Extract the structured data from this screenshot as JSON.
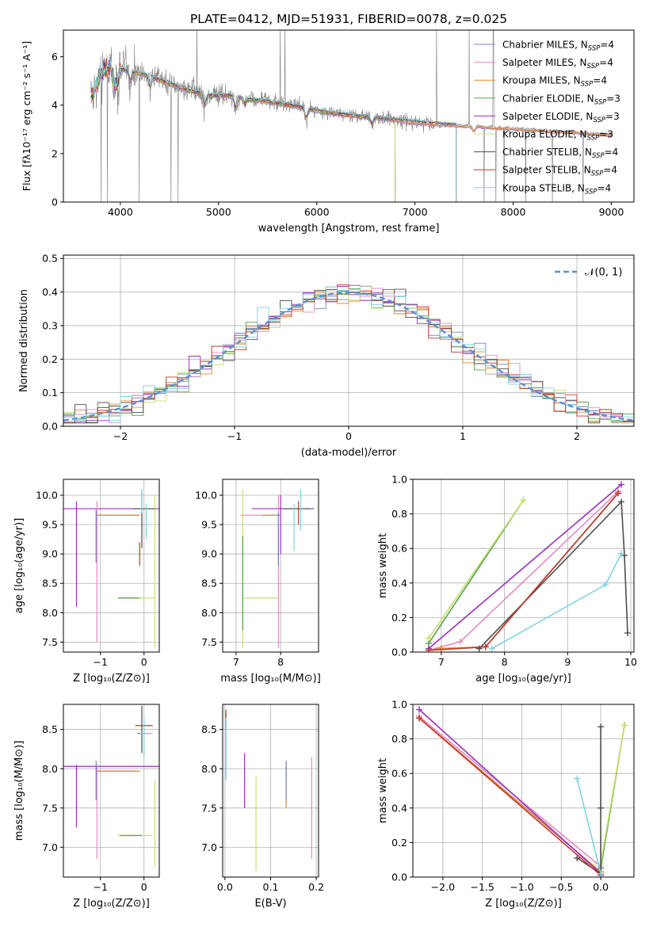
{
  "figure": {
    "title": "PLATE=0412, MJD=51931, FIBERID=0078, z=0.025"
  },
  "series_colors": {
    "Chabrier MILES": "#6f82c4",
    "Salpeter MILES": "#e58ac6",
    "Kroupa MILES": "#e08a2c",
    "Chabrier ELODIE": "#56a24d",
    "Salpeter ELODIE": "#9b2fbf",
    "Kroupa ELODIE": "#c8e070",
    "Chabrier STELIB": "#4d4d4d",
    "Salpeter STELIB": "#c0392b",
    "Kroupa STELIB": "#7fd3e3",
    "data": "#808080",
    "gaussian": "#5b8fd6"
  },
  "chart_data": [
    {
      "id": "spectrum",
      "type": "line",
      "xlabel": "wavelength [Angstrom, rest frame]",
      "ylabel": "Flux [fλ10⁻¹⁷ erg cm⁻² s⁻¹ A⁻¹]",
      "xlim": [
        3420,
        9230
      ],
      "ylim": [
        0,
        7.1
      ],
      "xticks": [
        4000,
        5000,
        6000,
        7000,
        8000,
        9000
      ],
      "yticks": [
        0,
        2,
        4,
        6
      ],
      "legend_position": "upper right",
      "legend": [
        {
          "label": "Chabrier MILES, N",
          "sub": "SSP",
          "tail": "=4"
        },
        {
          "label": "Salpeter MILES, N",
          "sub": "SSP",
          "tail": "=4"
        },
        {
          "label": "Kroupa MILES, N",
          "sub": "SSP",
          "tail": "=4"
        },
        {
          "label": "Chabrier ELODIE, N",
          "sub": "SSP",
          "tail": "=3"
        },
        {
          "label": "Salpeter ELODIE, N",
          "sub": "SSP",
          "tail": "=3"
        },
        {
          "label": "Kroupa ELODIE, N",
          "sub": "SSP",
          "tail": "=3"
        },
        {
          "label": "Chabrier STELIB, N",
          "sub": "SSP",
          "tail": "=4"
        },
        {
          "label": "Salpeter STELIB, N",
          "sub": "SSP",
          "tail": "=4"
        },
        {
          "label": "Kroupa STELIB, N",
          "sub": "SSP",
          "tail": "=4"
        }
      ],
      "model_envelope": [
        [
          3720,
          4.5
        ],
        [
          3800,
          5.3
        ],
        [
          3900,
          5.6
        ],
        [
          4000,
          5.5
        ],
        [
          4100,
          5.4
        ],
        [
          4300,
          5.2
        ],
        [
          4500,
          4.9
        ],
        [
          4700,
          4.6
        ],
        [
          4900,
          4.4
        ],
        [
          5100,
          4.4
        ],
        [
          5300,
          4.25
        ],
        [
          5500,
          4.15
        ],
        [
          5800,
          3.95
        ],
        [
          6100,
          3.7
        ],
        [
          6400,
          3.55
        ],
        [
          6700,
          3.45
        ],
        [
          7000,
          3.3
        ],
        [
          7300,
          3.2
        ],
        [
          7600,
          3.15
        ],
        [
          8000,
          3.05
        ],
        [
          8400,
          2.95
        ],
        [
          8800,
          2.85
        ],
        [
          9000,
          2.8
        ]
      ]
    },
    {
      "id": "residuals",
      "type": "line",
      "xlabel": "(data-model)/error",
      "ylabel": "Normed distribution",
      "xlim": [
        -2.5,
        2.5
      ],
      "ylim": [
        0,
        0.51
      ],
      "xticks": [
        -2,
        -1,
        0,
        1,
        2
      ],
      "yticks": [
        0.0,
        0.1,
        0.2,
        0.3,
        0.4,
        0.5
      ],
      "legend_position": "upper right",
      "gaussian_label": "𝒩(0, 1)"
    },
    {
      "id": "age-vs-Z",
      "type": "scatter",
      "xlabel": "Z [log₁₀(Z/Z⊙)]",
      "ylabel": "age  [log₁₀(age/yr)]",
      "xlim": [
        -1.85,
        0.35
      ],
      "ylim": [
        7.33,
        10.27
      ],
      "xticks": [
        -1,
        0
      ],
      "yticks": [
        7.5,
        8.0,
        8.5,
        9.0,
        9.5,
        10.0
      ]
    },
    {
      "id": "age-vs-mass",
      "type": "scatter",
      "xlabel": "mass [log₁₀(M/M⊙)]",
      "ylabel": "",
      "xlim": [
        6.7,
        8.85
      ],
      "ylim": [
        7.33,
        10.27
      ],
      "xticks": [
        7,
        8
      ],
      "yticks": [
        7.5,
        8.0,
        8.5,
        9.0,
        9.5,
        10.0
      ]
    },
    {
      "id": "massweight-vs-age",
      "type": "line",
      "xlabel": "age  [log₁₀(age/yr)]",
      "ylabel": "mass weight",
      "xlim": [
        6.55,
        10.05
      ],
      "ylim": [
        0,
        1.0
      ],
      "xticks": [
        7,
        8,
        9,
        10
      ],
      "yticks": [
        0.0,
        0.2,
        0.4,
        0.6,
        0.8,
        1.0
      ],
      "series": [
        {
          "name": "Chabrier MILES",
          "x": [
            6.8,
            7.0,
            7.7,
            9.8
          ],
          "y": [
            0.01,
            0.02,
            0.03,
            0.92
          ]
        },
        {
          "name": "Salpeter MILES",
          "x": [
            6.8,
            7.3,
            9.8
          ],
          "y": [
            0.01,
            0.06,
            0.93
          ]
        },
        {
          "name": "Kroupa MILES",
          "x": [
            6.8,
            7.0,
            7.7,
            9.8
          ],
          "y": [
            0.01,
            0.02,
            0.03,
            0.92
          ]
        },
        {
          "name": "Chabrier ELODIE",
          "x": [
            6.8,
            8.3
          ],
          "y": [
            0.05,
            0.88
          ]
        },
        {
          "name": "Salpeter ELODIE",
          "x": [
            6.8,
            9.85
          ],
          "y": [
            0.02,
            0.97
          ]
        },
        {
          "name": "Kroupa ELODIE",
          "x": [
            6.8,
            8.3
          ],
          "y": [
            0.08,
            0.88
          ]
        },
        {
          "name": "Chabrier STELIB",
          "x": [
            7.6,
            9.85,
            9.9,
            9.95
          ],
          "y": [
            0.02,
            0.87,
            0.56,
            0.11
          ]
        },
        {
          "name": "Salpeter STELIB",
          "x": [
            6.8,
            7.7,
            9.8
          ],
          "y": [
            0.01,
            0.03,
            0.92
          ]
        },
        {
          "name": "Kroupa STELIB",
          "x": [
            7.8,
            9.6,
            9.85
          ],
          "y": [
            0.02,
            0.39,
            0.57
          ]
        }
      ]
    },
    {
      "id": "mass-vs-Z",
      "type": "scatter",
      "xlabel": "Z [log₁₀(Z/Z⊙)]",
      "ylabel": "mass [log₁₀(M/M⊙)]",
      "xlim": [
        -1.85,
        0.35
      ],
      "ylim": [
        6.62,
        8.82
      ],
      "xticks": [
        -1,
        0
      ],
      "yticks": [
        7.0,
        7.5,
        8.0,
        8.5
      ]
    },
    {
      "id": "mass-vs-EBV",
      "type": "scatter",
      "xlabel": "E(B-V)",
      "ylabel": "",
      "xlim": [
        -0.005,
        0.205
      ],
      "ylim": [
        6.62,
        8.82
      ],
      "xticks": [
        0.0,
        0.1,
        0.2
      ],
      "yticks": [
        7.0,
        7.5,
        8.0,
        8.5
      ]
    },
    {
      "id": "massweight-vs-Z",
      "type": "line",
      "xlabel": "Z [log₁₀(Z/Z⊙)]",
      "ylabel": "mass weight",
      "xlim": [
        -2.38,
        0.42
      ],
      "ylim": [
        0,
        1.0
      ],
      "xticks": [
        -2.0,
        -1.5,
        -1.0,
        -0.5,
        0.0
      ],
      "yticks": [
        0.0,
        0.2,
        0.4,
        0.6,
        0.8,
        1.0
      ],
      "series": [
        {
          "name": "Chabrier MILES",
          "x": [
            -2.3,
            0.0
          ],
          "y": [
            0.92,
            0.03
          ]
        },
        {
          "name": "Salpeter MILES",
          "x": [
            -2.3,
            0.0
          ],
          "y": [
            0.93,
            0.06
          ]
        },
        {
          "name": "Kroupa MILES",
          "x": [
            -2.3,
            0.0
          ],
          "y": [
            0.92,
            0.03
          ]
        },
        {
          "name": "Chabrier ELODIE",
          "x": [
            0.0,
            0.3
          ],
          "y": [
            0.05,
            0.88
          ]
        },
        {
          "name": "Salpeter ELODIE",
          "x": [
            -2.3,
            0.0
          ],
          "y": [
            0.97,
            0.02
          ]
        },
        {
          "name": "Kroupa ELODIE",
          "x": [
            0.0,
            0.3
          ],
          "y": [
            0.08,
            0.88
          ]
        },
        {
          "name": "Chabrier STELIB",
          "x": [
            -0.3,
            0.0,
            0.0,
            0.0
          ],
          "y": [
            0.11,
            0.02,
            0.4,
            0.87
          ]
        },
        {
          "name": "Salpeter STELIB",
          "x": [
            -2.3,
            0.0
          ],
          "y": [
            0.92,
            0.01
          ]
        },
        {
          "name": "Kroupa STELIB",
          "x": [
            -0.3,
            0.0
          ],
          "y": [
            0.57,
            0.02
          ]
        }
      ]
    }
  ]
}
